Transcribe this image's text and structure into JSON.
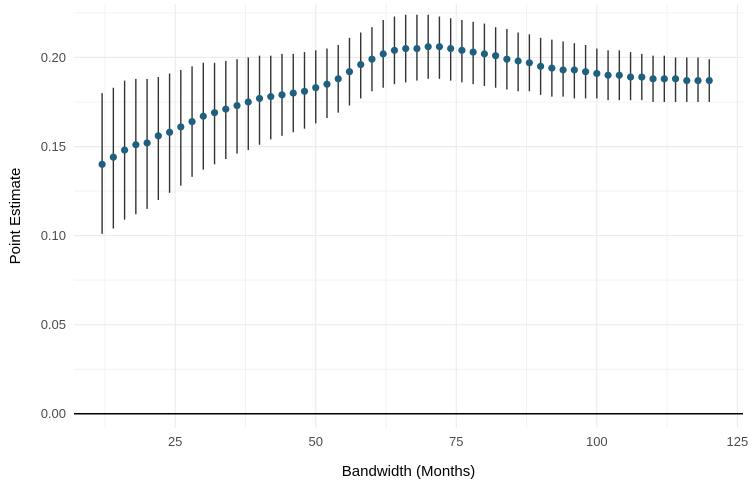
{
  "chart_data": {
    "type": "scatter",
    "title": "",
    "xlabel": "Bandwidth (Months)",
    "ylabel": "Point Estimate",
    "xlim": [
      7,
      126
    ],
    "ylim": [
      -0.008,
      0.23
    ],
    "x_ticks": [
      25,
      50,
      75,
      100,
      125
    ],
    "x_tick_labels": [
      "25",
      "50",
      "75",
      "100",
      "125"
    ],
    "y_ticks": [
      0.0,
      0.05,
      0.1,
      0.15,
      0.2
    ],
    "y_tick_labels": [
      "0.00",
      "0.05",
      "0.10",
      "0.15",
      "0.20"
    ],
    "grid": true,
    "reference_line_y": 0,
    "point_color": "#1f6080",
    "errorbar_color": "#333333",
    "series": [
      {
        "x": [
          12,
          14,
          16,
          18,
          20,
          22,
          24,
          26,
          28,
          30,
          32,
          34,
          36,
          38,
          40,
          42,
          44,
          46,
          48,
          50,
          52,
          54,
          56,
          58,
          60,
          62,
          64,
          66,
          68,
          70,
          72,
          74,
          76,
          78,
          80,
          82,
          84,
          86,
          88,
          90,
          92,
          94,
          96,
          98,
          100,
          102,
          104,
          106,
          108,
          110,
          112,
          114,
          116,
          118,
          120
        ],
        "y": [
          0.14,
          0.144,
          0.148,
          0.151,
          0.152,
          0.156,
          0.158,
          0.161,
          0.164,
          0.167,
          0.169,
          0.171,
          0.173,
          0.175,
          0.177,
          0.178,
          0.179,
          0.18,
          0.181,
          0.183,
          0.185,
          0.188,
          0.192,
          0.196,
          0.199,
          0.202,
          0.204,
          0.205,
          0.205,
          0.206,
          0.206,
          0.205,
          0.204,
          0.203,
          0.202,
          0.201,
          0.199,
          0.198,
          0.197,
          0.195,
          0.194,
          0.193,
          0.193,
          0.192,
          0.191,
          0.19,
          0.19,
          0.189,
          0.189,
          0.188,
          0.188,
          0.188,
          0.187,
          0.187,
          0.187
        ],
        "lower": [
          0.101,
          0.104,
          0.109,
          0.112,
          0.115,
          0.12,
          0.124,
          0.128,
          0.133,
          0.137,
          0.14,
          0.143,
          0.146,
          0.148,
          0.151,
          0.154,
          0.156,
          0.158,
          0.16,
          0.163,
          0.166,
          0.169,
          0.173,
          0.177,
          0.181,
          0.183,
          0.185,
          0.186,
          0.187,
          0.188,
          0.188,
          0.187,
          0.186,
          0.185,
          0.184,
          0.183,
          0.182,
          0.181,
          0.181,
          0.179,
          0.178,
          0.178,
          0.177,
          0.177,
          0.177,
          0.176,
          0.176,
          0.176,
          0.176,
          0.175,
          0.175,
          0.175,
          0.175,
          0.175,
          0.175
        ],
        "upper": [
          0.18,
          0.183,
          0.187,
          0.188,
          0.188,
          0.189,
          0.191,
          0.193,
          0.195,
          0.197,
          0.197,
          0.198,
          0.199,
          0.2,
          0.201,
          0.201,
          0.202,
          0.202,
          0.203,
          0.204,
          0.205,
          0.207,
          0.211,
          0.214,
          0.217,
          0.221,
          0.223,
          0.224,
          0.224,
          0.224,
          0.223,
          0.222,
          0.221,
          0.22,
          0.219,
          0.217,
          0.216,
          0.214,
          0.213,
          0.211,
          0.21,
          0.209,
          0.208,
          0.207,
          0.205,
          0.204,
          0.204,
          0.203,
          0.202,
          0.201,
          0.201,
          0.2,
          0.2,
          0.2,
          0.199
        ]
      }
    ]
  }
}
